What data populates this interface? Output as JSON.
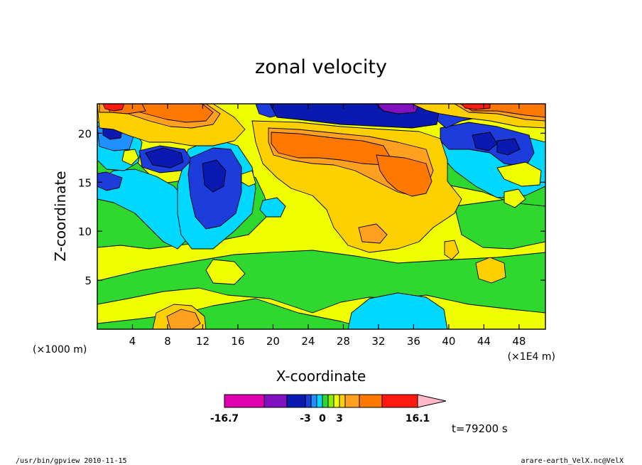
{
  "chart_data": {
    "type": "heatmap",
    "title": "zonal velocity",
    "xlabel": "X-coordinate",
    "ylabel": "Z-coordinate",
    "x_unit_left": "(×1000 m)",
    "x_unit_right": "(×1E4 m)",
    "xlim": [
      0,
      51
    ],
    "ylim": [
      0,
      23
    ],
    "x_ticks": [
      4,
      8,
      12,
      16,
      20,
      24,
      28,
      32,
      36,
      40,
      44,
      48
    ],
    "y_ticks": [
      5,
      10,
      15,
      20
    ],
    "colorbar": {
      "colors": [
        "#e000b0",
        "#8010c0",
        "#0a1ab0",
        "#1c3cdc",
        "#1e90ff",
        "#00d8ff",
        "#2fd82f",
        "#8cf000",
        "#f0ff00",
        "#ffd000",
        "#ffa020",
        "#ff7800",
        "#ff1a10",
        "#ff7878"
      ],
      "extend_color": "#ffb8c8",
      "labels": [
        {
          "text": "-16.7",
          "value": -16.7
        },
        {
          "text": "-3",
          "value": -3
        },
        {
          "text": "0",
          "value": 0
        },
        {
          "text": "3",
          "value": 3
        },
        {
          "text": "16.1",
          "value": 16.1
        }
      ]
    },
    "time_label": "t=79200 s"
  },
  "footer": {
    "left": "/usr/bin/gpview   2010-11-15",
    "right": "arare-earth_VelX.nc@VelX"
  }
}
